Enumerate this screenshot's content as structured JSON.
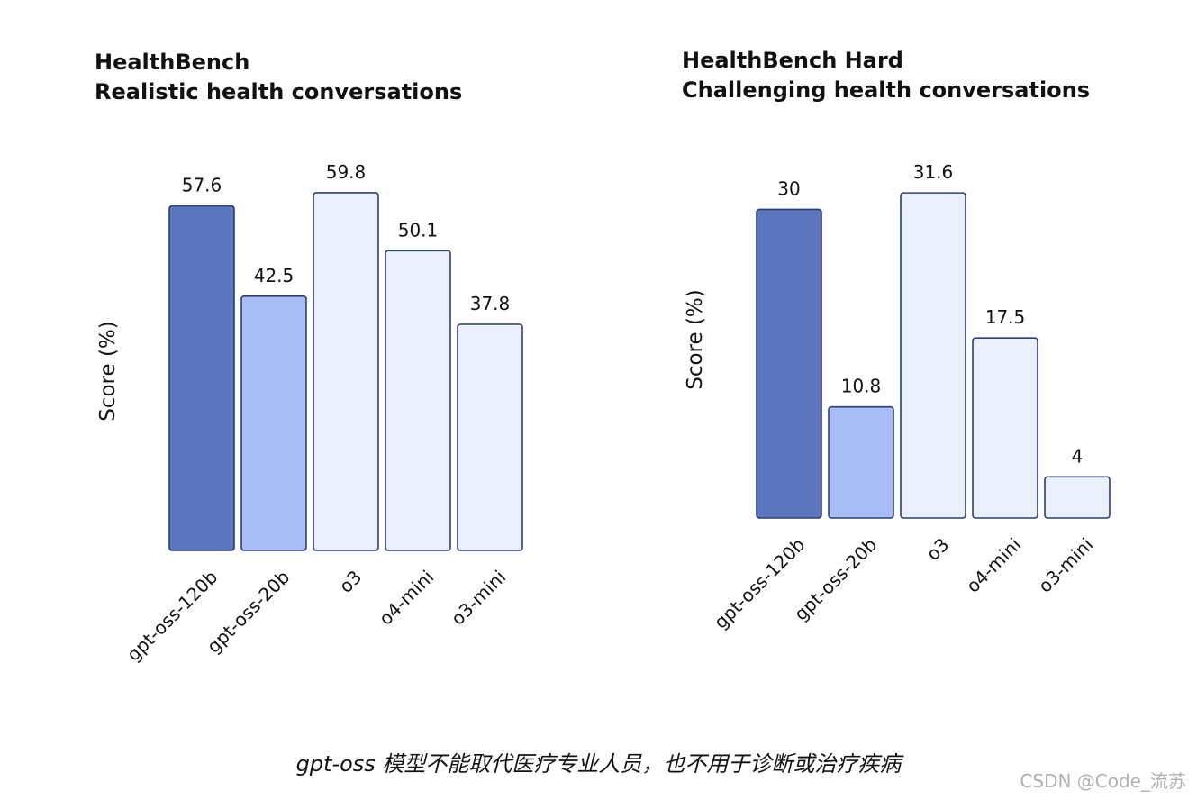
{
  "chart_data": [
    {
      "type": "bar",
      "title": "HealthBench",
      "subtitle": "Realistic health conversations",
      "ylabel": "Score (%)",
      "xlabel": "",
      "categories": [
        "gpt-oss-120b",
        "gpt-oss-20b",
        "o3",
        "o4-mini",
        "o3-mini"
      ],
      "values": [
        57.6,
        42.5,
        59.8,
        50.1,
        37.8
      ],
      "value_labels": [
        "57.6",
        "42.5",
        "59.8",
        "50.1",
        "37.8"
      ],
      "colors": [
        "#5b76be",
        "#a8bcf5",
        "#eaf0fc",
        "#eaf0fc",
        "#eaf0fc"
      ],
      "grid": false
    },
    {
      "type": "bar",
      "title": "HealthBench Hard",
      "subtitle": "Challenging health conversations",
      "ylabel": "Score (%)",
      "xlabel": "",
      "categories": [
        "gpt-oss-120b",
        "gpt-oss-20b",
        "o3",
        "o4-mini",
        "o3-mini"
      ],
      "values": [
        30,
        10.8,
        31.6,
        17.5,
        4
      ],
      "value_labels": [
        "30",
        "10.8",
        "31.6",
        "17.5",
        "4"
      ],
      "colors": [
        "#5b76be",
        "#a8bcf5",
        "#eaf0fc",
        "#eaf0fc",
        "#eaf0fc"
      ],
      "grid": false
    }
  ],
  "bar_edge_color": "#2c3e75",
  "caption": "gpt-oss 模型不能取代医疗专业人员，也不用于诊断或治疗疾病",
  "watermark": "CSDN @Code_流苏"
}
